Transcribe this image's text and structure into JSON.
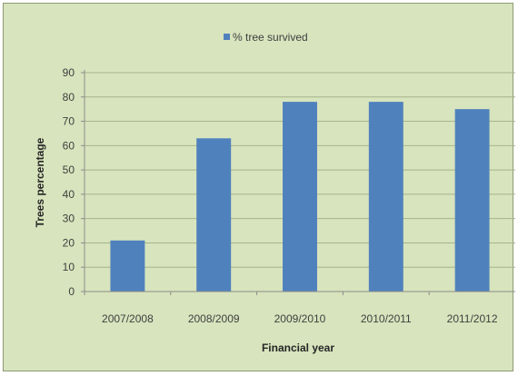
{
  "chart_data": {
    "type": "bar",
    "title": "",
    "xlabel": "Financial year",
    "ylabel": "Trees percentage",
    "categories": [
      "2007/2008",
      "2008/2009",
      "2009/2010",
      "2010/2011",
      "2011/2012"
    ],
    "series": [
      {
        "name": "% tree survived",
        "values": [
          21,
          63,
          78,
          78,
          75
        ],
        "color": "#4f81bd"
      }
    ],
    "ylim": [
      0,
      90
    ],
    "yticks": [
      0,
      10,
      20,
      30,
      40,
      50,
      60,
      70,
      80,
      90
    ],
    "grid": true,
    "legend_position": "top"
  },
  "colors": {
    "background": "#d7e4bd",
    "gridline": "#a6b48c",
    "axis": "#8c8c8c"
  }
}
